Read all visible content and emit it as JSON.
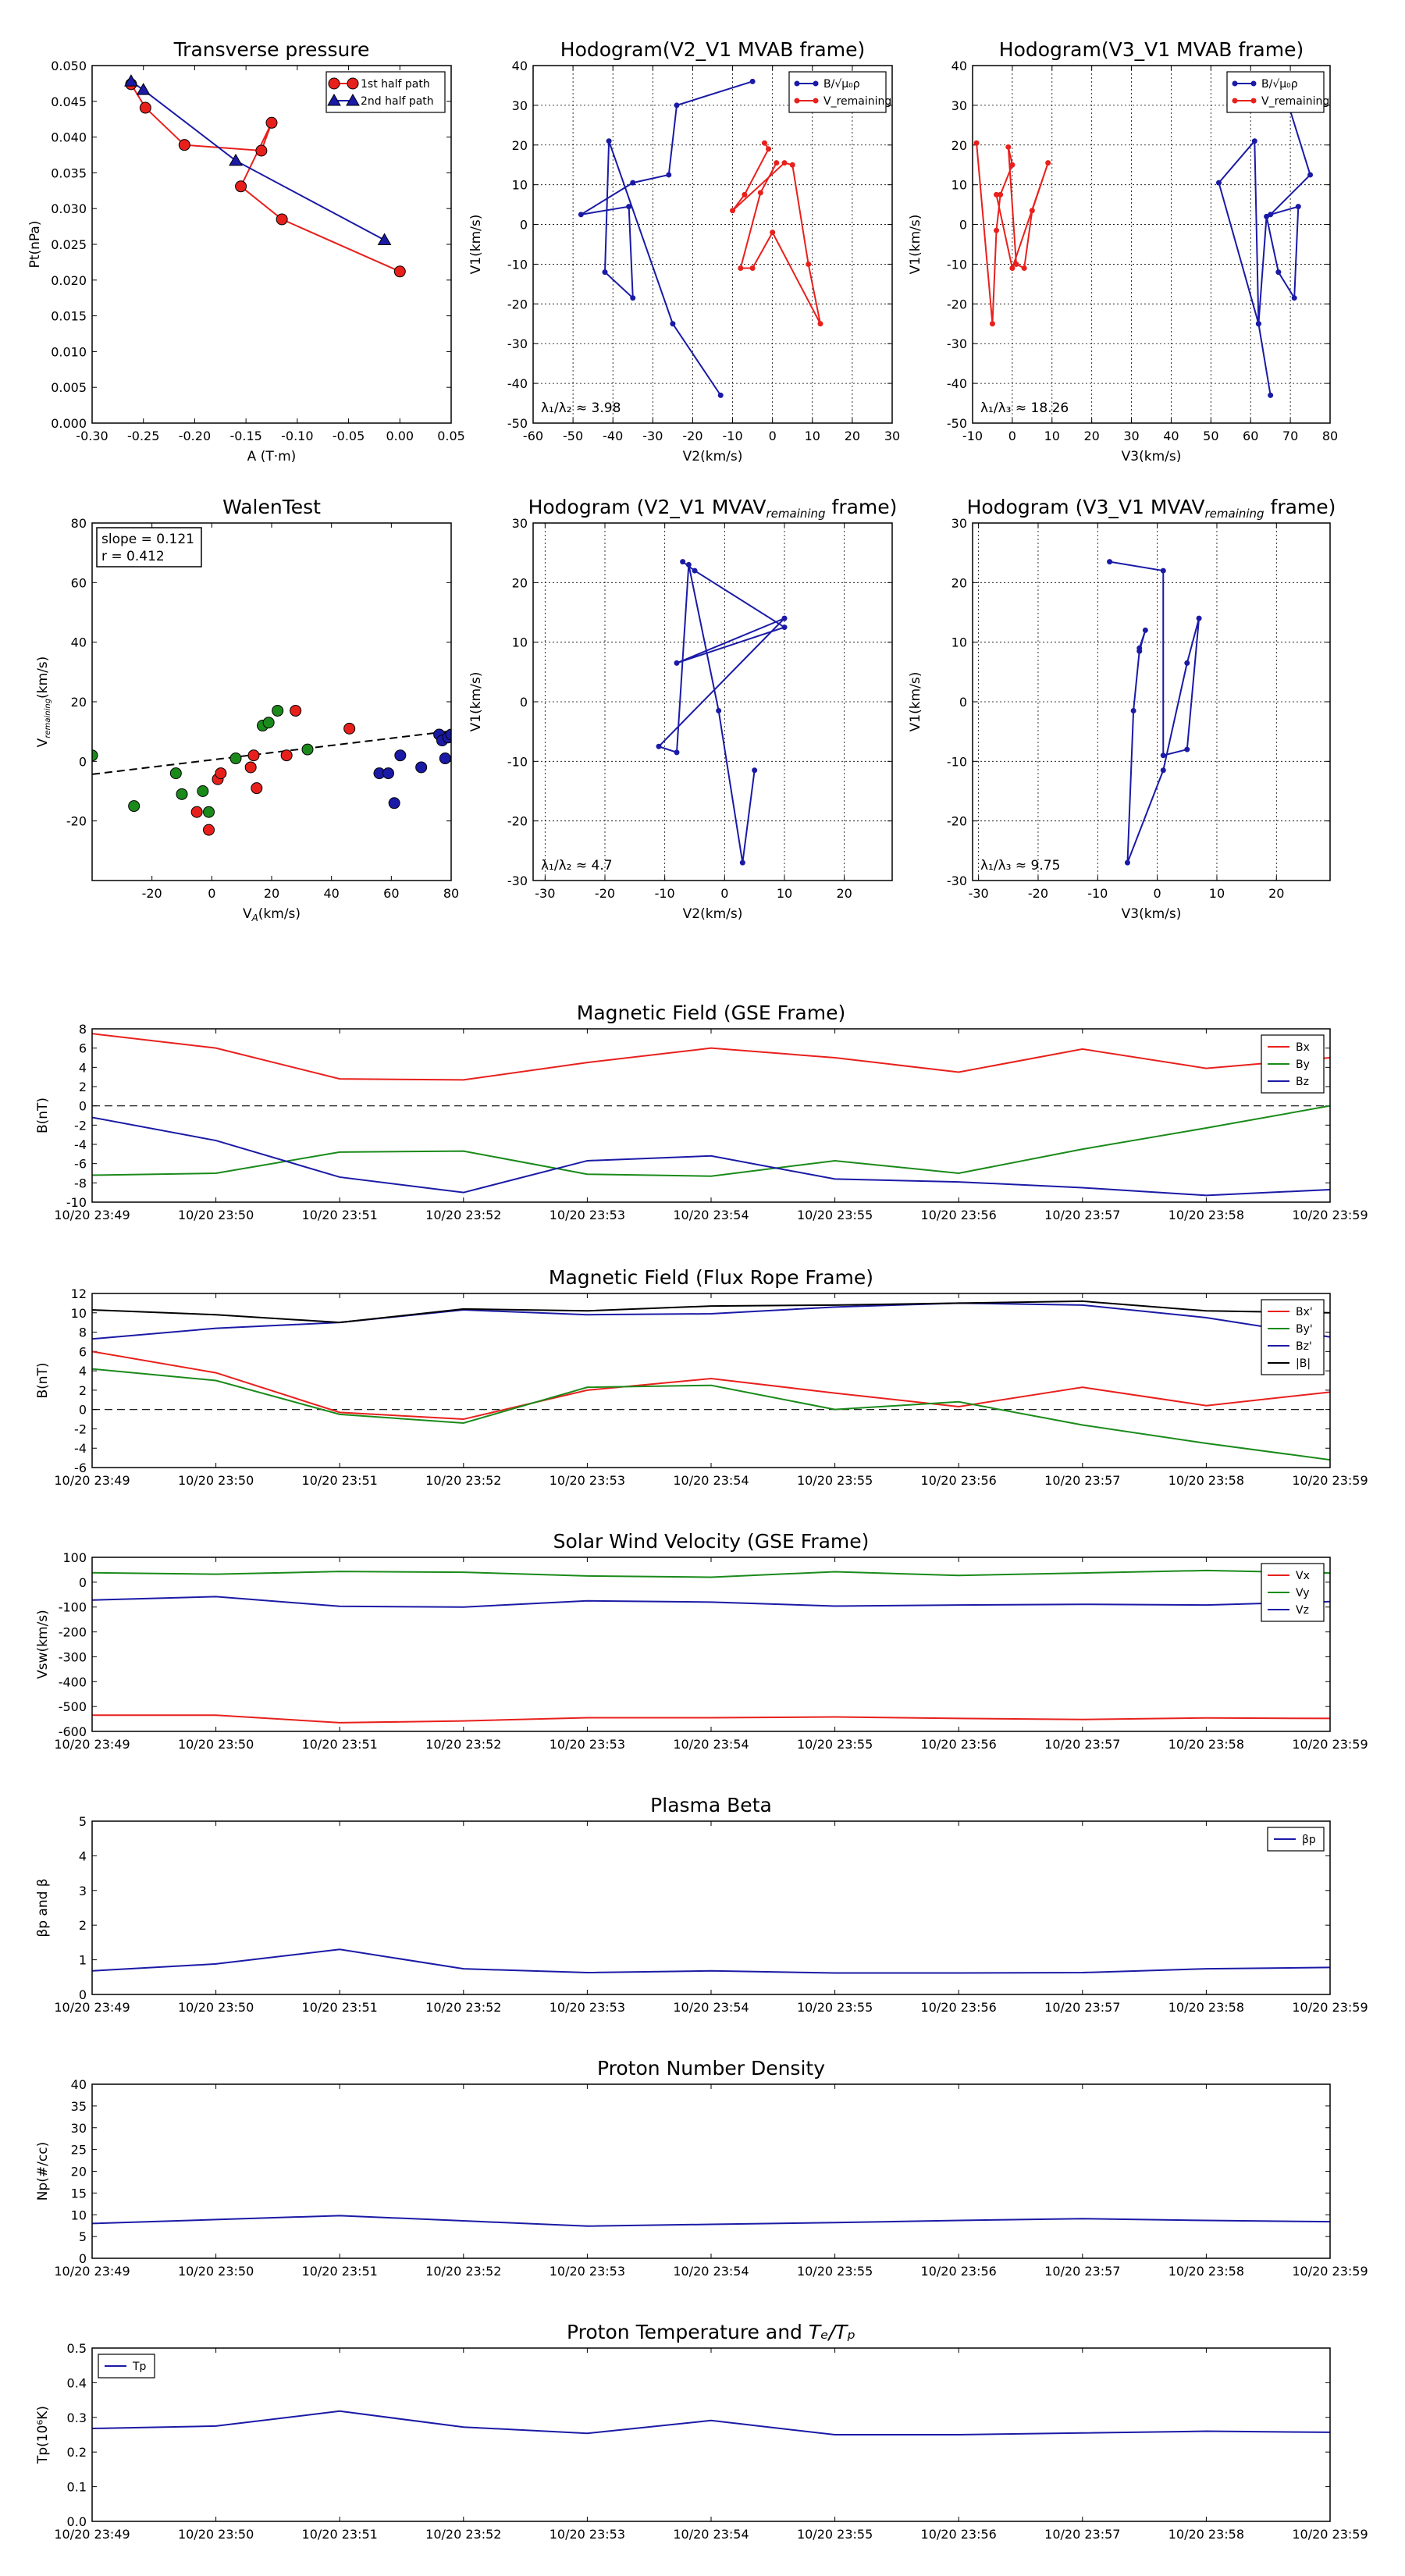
{
  "chart_data": [
    {
      "id": "tp",
      "type": "scatter",
      "title": "Transverse pressure",
      "xlabel": "A (T·m)",
      "ylabel": "Pt(nPa)",
      "xlim": [
        -0.3,
        0.05
      ],
      "ylim": [
        0.0,
        0.05
      ],
      "xticks": [
        -0.3,
        -0.25,
        -0.2,
        -0.15,
        -0.1,
        -0.05,
        0.0,
        0.05
      ],
      "yticks": [
        0.0,
        0.005,
        0.01,
        0.015,
        0.02,
        0.025,
        0.03,
        0.035,
        0.04,
        0.045,
        0.05
      ],
      "xfmt": 2,
      "yfmt": 3,
      "legend": [
        {
          "label": "1st half path",
          "color": "#e8201c",
          "marker": "o"
        },
        {
          "label": "2nd half path",
          "color": "#1a1aa6",
          "marker": "^"
        }
      ],
      "series": [
        {
          "name": "1st half path",
          "color": "#e8201c",
          "marker": "o",
          "line": true,
          "x": [
            0.0,
            -0.115,
            -0.155,
            -0.125,
            -0.135,
            -0.21,
            -0.248,
            -0.262
          ],
          "y": [
            0.0212,
            0.0285,
            0.0331,
            0.042,
            0.0381,
            0.0389,
            0.0441,
            0.0474
          ]
        },
        {
          "name": "2nd half path",
          "color": "#1a1aa6",
          "marker": "^",
          "line": true,
          "x": [
            -0.015,
            -0.16,
            -0.25,
            -0.262
          ],
          "y": [
            0.0256,
            0.0367,
            0.0466,
            0.0478
          ]
        }
      ]
    },
    {
      "id": "h1",
      "type": "line",
      "title": "Hodogram(V2_V1 MVAB frame)",
      "xlabel": "V2(km/s)",
      "ylabel": "V1(km/s)",
      "xlim": [
        -60,
        30
      ],
      "ylim": [
        -50,
        40
      ],
      "xticks": [
        -60,
        -50,
        -40,
        -30,
        -20,
        -10,
        0,
        10,
        20,
        30
      ],
      "yticks": [
        -50,
        -40,
        -30,
        -20,
        -10,
        0,
        10,
        20,
        30,
        40
      ],
      "xfmt": 0,
      "yfmt": 0,
      "grid": true,
      "annotation": "λ₁/λ₂ ≈ 3.98",
      "legend": [
        {
          "label": "B/√μ₀ρ",
          "color": "#1a1aa6",
          "marker": "."
        },
        {
          "label": "V_remaining",
          "color": "#e8201c",
          "marker": "."
        }
      ],
      "series": [
        {
          "name": "B/√μ₀ρ",
          "color": "#1a1aa6",
          "marker": ".",
          "line": true,
          "x": [
            -5,
            -24,
            -26,
            -35,
            -48,
            -36,
            -35,
            -42,
            -41,
            -25,
            -13
          ],
          "y": [
            36,
            30,
            12.5,
            10.5,
            2.5,
            4.5,
            -18.5,
            -12,
            21,
            -25,
            -43
          ]
        },
        {
          "name": "V_remaining",
          "color": "#e8201c",
          "marker": ".",
          "line": true,
          "x": [
            -2,
            -1,
            -7,
            -10,
            3,
            5,
            9,
            12,
            0,
            -5,
            -8,
            -3,
            1
          ],
          "y": [
            20.5,
            19,
            7.5,
            3.5,
            15.5,
            15,
            -10,
            -25,
            -2,
            -11,
            -11,
            8,
            15.5
          ]
        }
      ]
    },
    {
      "id": "h2",
      "type": "line",
      "title": "Hodogram(V3_V1 MVAB frame)",
      "xlabel": "V3(km/s)",
      "ylabel": "V1(km/s)",
      "xlim": [
        -10,
        80
      ],
      "ylim": [
        -50,
        40
      ],
      "xticks": [
        -10,
        0,
        10,
        20,
        30,
        40,
        50,
        60,
        70,
        80
      ],
      "yticks": [
        -50,
        -40,
        -30,
        -20,
        -10,
        0,
        10,
        20,
        30,
        40
      ],
      "xfmt": 0,
      "yfmt": 0,
      "grid": true,
      "annotation": "λ₁/λ₃ ≈ 18.26",
      "legend": [
        {
          "label": "B/√μ₀ρ",
          "color": "#1a1aa6",
          "marker": "."
        },
        {
          "label": "V_remaining",
          "color": "#e8201c",
          "marker": "."
        }
      ],
      "series": [
        {
          "name": "B/√μ₀ρ",
          "color": "#1a1aa6",
          "marker": ".",
          "line": true,
          "x": [
            68,
            75,
            65,
            72,
            71,
            67,
            64,
            62,
            61,
            52,
            62,
            65
          ],
          "y": [
            35,
            12.5,
            2.5,
            4.5,
            -18.5,
            -12,
            2,
            -25,
            21,
            10.5,
            -25,
            -43
          ]
        },
        {
          "name": "V_remaining",
          "color": "#e8201c",
          "marker": ".",
          "line": true,
          "x": [
            -9,
            -5,
            -4,
            -3,
            0,
            -1,
            1,
            3,
            5,
            9,
            0,
            -4
          ],
          "y": [
            20.5,
            -25,
            -1.5,
            7.5,
            15,
            19.5,
            -10,
            -11,
            3.5,
            15.5,
            -11,
            7.5
          ]
        }
      ]
    },
    {
      "id": "wt",
      "type": "scatter",
      "title": "WalenTest",
      "xlabel": "V_A(km/s)",
      "ylabel": "V_remaining(km/s)",
      "xlim": [
        -40,
        80
      ],
      "ylim": [
        -40,
        80
      ],
      "xticks": [
        -20,
        0,
        20,
        40,
        60,
        80
      ],
      "yticks": [
        -20,
        0,
        20,
        40,
        60,
        80
      ],
      "xfmt": 0,
      "yfmt": 0,
      "annotation": [
        "slope = 0.121",
        "r = 0.412"
      ],
      "fit": {
        "slope": 0.121,
        "intercept": 0.5
      },
      "series": [
        {
          "name": "red",
          "color": "#e8201c",
          "marker": "o",
          "line": false,
          "x": [
            -5,
            -1,
            2,
            3,
            13,
            14,
            15,
            25,
            28,
            46
          ],
          "y": [
            -17,
            -23,
            -6,
            -4,
            -2,
            2,
            -9,
            2,
            17,
            11
          ]
        },
        {
          "name": "green",
          "color": "#1a8a1a",
          "marker": "o",
          "line": false,
          "x": [
            -40,
            -26,
            -12,
            -10,
            -3,
            -1,
            8,
            17,
            19,
            22,
            32
          ],
          "y": [
            2,
            -15,
            -4,
            -11,
            -10,
            -17,
            1,
            12,
            13,
            17,
            4
          ]
        },
        {
          "name": "blue",
          "color": "#1a1aa6",
          "marker": "o",
          "line": false,
          "x": [
            56,
            59,
            61,
            63,
            70,
            76,
            77,
            78,
            79,
            80
          ],
          "y": [
            -4,
            -4,
            -14,
            2,
            -2,
            9,
            7,
            1,
            8,
            9
          ]
        }
      ]
    },
    {
      "id": "h3",
      "type": "line",
      "title": "Hodogram (V2_V1 MVAV",
      "title_sub": "remaining",
      "title_end": " frame)",
      "xlabel": "V2(km/s)",
      "ylabel": "V1(km/s)",
      "xlim": [
        -32,
        28
      ],
      "ylim": [
        -30,
        30
      ],
      "xticks": [
        -30,
        -20,
        -10,
        0,
        10,
        20
      ],
      "yticks": [
        -30,
        -20,
        -10,
        0,
        10,
        20,
        30
      ],
      "xfmt": 0,
      "yfmt": 0,
      "grid": true,
      "annotation": "λ₁/λ₂ ≈ 4.7",
      "series": [
        {
          "name": "B",
          "color": "#1a1aa6",
          "marker": ".",
          "line": true,
          "x": [
            -7,
            -5,
            10,
            -8,
            10,
            -11,
            -8,
            -6,
            -1,
            3,
            5
          ],
          "y": [
            23.5,
            22,
            12.5,
            6.5,
            14,
            -7.5,
            -8.5,
            23,
            -1.5,
            -27,
            -11.5
          ]
        }
      ]
    },
    {
      "id": "h4",
      "type": "line",
      "title": "Hodogram (V3_V1 MVAV",
      "title_sub": "remaining",
      "title_end": " frame)",
      "xlabel": "V3(km/s)",
      "ylabel": "V1(km/s)",
      "xlim": [
        -31,
        29
      ],
      "ylim": [
        -30,
        30
      ],
      "xticks": [
        -30,
        -20,
        -10,
        0,
        10,
        20
      ],
      "yticks": [
        -30,
        -20,
        -10,
        0,
        10,
        20,
        30
      ],
      "xfmt": 0,
      "yfmt": 0,
      "grid": true,
      "annotation": "λ₁/λ₃ ≈ 9.75",
      "series": [
        {
          "name": "B",
          "color": "#1a1aa6",
          "marker": ".",
          "line": true,
          "x": [
            -8,
            1,
            1,
            5,
            7,
            5,
            1,
            -5,
            -4,
            -3,
            -2,
            -3
          ],
          "y": [
            23.5,
            22,
            -9,
            -8,
            14,
            6.5,
            -11.5,
            -27,
            -1.5,
            8.5,
            12,
            9
          ]
        }
      ]
    },
    {
      "id": "ts1",
      "type": "line",
      "title": "Magnetic Field (GSE Frame)",
      "ylabel": "B(nT)",
      "ylim": [
        -10,
        8
      ],
      "yticks": [
        -10,
        -8,
        -6,
        -4,
        -2,
        0,
        2,
        4,
        6,
        8
      ],
      "yfmt": 0,
      "zeroline": true,
      "legend": [
        {
          "label": "Bx",
          "color": "#e8201c"
        },
        {
          "label": "By",
          "color": "#1a8a1a"
        },
        {
          "label": "Bz",
          "color": "#1a1aa6"
        }
      ],
      "series": [
        {
          "name": "Bx",
          "color": "#e8201c",
          "values": [
            7.5,
            6.0,
            2.8,
            2.7,
            4.5,
            6.0,
            5.0,
            3.5,
            5.9,
            3.9,
            5.0
          ]
        },
        {
          "name": "By",
          "color": "#1a8a1a",
          "values": [
            -7.2,
            -7.0,
            -4.8,
            -4.7,
            -7.1,
            -7.3,
            -5.7,
            -7.0,
            -4.5,
            -2.3,
            0.0
          ]
        },
        {
          "name": "Bz",
          "color": "#1a1aa6",
          "values": [
            -1.2,
            -3.6,
            -7.4,
            -9.0,
            -5.7,
            -5.2,
            -7.6,
            -7.9,
            -8.5,
            -9.3,
            -8.7
          ]
        }
      ]
    },
    {
      "id": "ts2",
      "type": "line",
      "title": "Magnetic Field (Flux Rope Frame)",
      "ylabel": "B(nT)",
      "ylim": [
        -6,
        12
      ],
      "yticks": [
        -6,
        -4,
        -2,
        0,
        2,
        4,
        6,
        8,
        10,
        12
      ],
      "yfmt": 0,
      "zeroline": true,
      "legend": [
        {
          "label": "Bx'",
          "color": "#e8201c"
        },
        {
          "label": "By'",
          "color": "#1a8a1a"
        },
        {
          "label": "Bz'",
          "color": "#1a1aa6"
        },
        {
          "label": "|B|",
          "color": "#000000"
        }
      ],
      "series": [
        {
          "name": "Bx'",
          "color": "#e8201c",
          "values": [
            6.0,
            3.8,
            -0.3,
            -1.0,
            2.0,
            3.2,
            1.7,
            0.3,
            2.3,
            0.4,
            1.8
          ]
        },
        {
          "name": "By'",
          "color": "#1a8a1a",
          "values": [
            4.2,
            3.0,
            -0.5,
            -1.4,
            2.3,
            2.5,
            0.0,
            0.8,
            -1.6,
            -3.5,
            -5.2
          ]
        },
        {
          "name": "Bz'",
          "color": "#1a1aa6",
          "values": [
            7.3,
            8.4,
            9.0,
            10.3,
            9.8,
            9.9,
            10.6,
            11.0,
            10.8,
            9.5,
            7.5
          ]
        },
        {
          "name": "|B|",
          "color": "#000000",
          "values": [
            10.3,
            9.8,
            9.0,
            10.4,
            10.2,
            10.7,
            10.8,
            11.0,
            11.2,
            10.2,
            10.0
          ]
        }
      ]
    },
    {
      "id": "ts3",
      "type": "line",
      "title": "Solar Wind Velocity (GSE Frame)",
      "ylabel": "Vsw(km/s)",
      "ylim": [
        -600,
        100
      ],
      "yticks": [
        -600,
        -500,
        -400,
        -300,
        -200,
        -100,
        0,
        100
      ],
      "yfmt": 0,
      "legend": [
        {
          "label": "Vx",
          "color": "#e8201c"
        },
        {
          "label": "Vy",
          "color": "#1a8a1a"
        },
        {
          "label": "Vz",
          "color": "#1a1aa6"
        }
      ],
      "series": [
        {
          "name": "Vx",
          "color": "#e8201c",
          "values": [
            -535,
            -535,
            -565,
            -558,
            -545,
            -545,
            -542,
            -548,
            -552,
            -546,
            -548
          ]
        },
        {
          "name": "Vy",
          "color": "#1a8a1a",
          "values": [
            38,
            32,
            43,
            40,
            25,
            20,
            42,
            27,
            37,
            47,
            37
          ]
        },
        {
          "name": "Vz",
          "color": "#1a1aa6",
          "values": [
            -72,
            -58,
            -97,
            -100,
            -75,
            -80,
            -96,
            -92,
            -89,
            -92,
            -78
          ]
        }
      ]
    },
    {
      "id": "ts4",
      "type": "line",
      "title": "Plasma Beta",
      "ylabel": "βp and β",
      "ylim": [
        0,
        5
      ],
      "yticks": [
        0,
        1,
        2,
        3,
        4,
        5
      ],
      "yfmt": 0,
      "legend": [
        {
          "label": "βp",
          "color": "#1a1aa6"
        }
      ],
      "series": [
        {
          "name": "βp",
          "color": "#1a1aa6",
          "values": [
            0.68,
            0.88,
            1.3,
            0.74,
            0.63,
            0.68,
            0.62,
            0.62,
            0.63,
            0.74,
            0.78
          ]
        }
      ]
    },
    {
      "id": "ts5",
      "type": "line",
      "title": "Proton Number Density",
      "ylabel": "Np(#/cc)",
      "ylim": [
        0,
        40
      ],
      "yticks": [
        0,
        5,
        10,
        15,
        20,
        25,
        30,
        35,
        40
      ],
      "yfmt": 0,
      "series": [
        {
          "name": "Np",
          "color": "#1a1aa6",
          "values": [
            8.0,
            8.9,
            9.8,
            8.6,
            7.4,
            7.8,
            8.2,
            8.7,
            9.1,
            8.7,
            8.4
          ]
        }
      ]
    },
    {
      "id": "ts6",
      "type": "line",
      "title": "Proton Temperature and",
      "title_math": "Tₑ/Tₚ",
      "ylabel": "Tp(10⁶K)",
      "ylim": [
        0,
        0.5
      ],
      "yticks": [
        0.0,
        0.1,
        0.2,
        0.3,
        0.4,
        0.5
      ],
      "yfmt": 1,
      "legend": [
        {
          "label": "Tp",
          "color": "#1a1aa6"
        }
      ],
      "series": [
        {
          "name": "Tp",
          "color": "#1a1aa6",
          "values": [
            0.268,
            0.275,
            0.318,
            0.272,
            0.254,
            0.291,
            0.25,
            0.25,
            0.255,
            0.26,
            0.257
          ]
        }
      ]
    }
  ],
  "time_axis": {
    "labels": [
      "10/20 23:49",
      "10/20 23:50",
      "10/20 23:51",
      "10/20 23:52",
      "10/20 23:53",
      "10/20 23:54",
      "10/20 23:55",
      "10/20 23:56",
      "10/20 23:57",
      "10/20 23:58",
      "10/20 23:59"
    ]
  }
}
